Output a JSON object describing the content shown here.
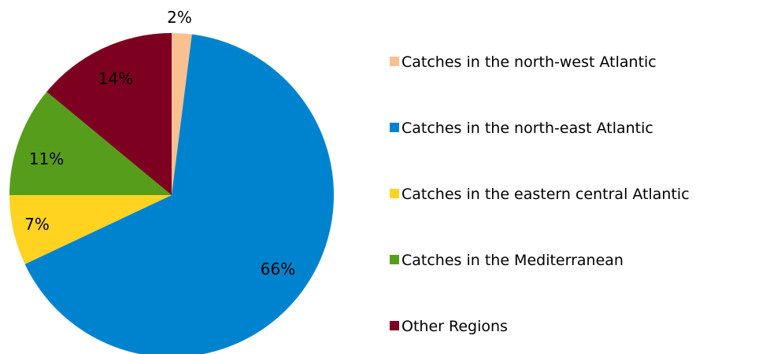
{
  "chart_data": {
    "type": "pie",
    "title": "",
    "legend_position": "right",
    "slices": [
      {
        "name": "Catches in the north-west Atlantic",
        "value": 2,
        "label": "2%",
        "color": "#FAC090"
      },
      {
        "name": "Catches in the north-east Atlantic",
        "value": 66,
        "label": "66%",
        "color": "#0083CF"
      },
      {
        "name": "Catches in the eastern central Atlantic",
        "value": 7,
        "label": "7%",
        "color": "#FFD320"
      },
      {
        "name": "Catches in the Mediterranean",
        "value": 11,
        "label": "11%",
        "color": "#579D1C"
      },
      {
        "name": "Other Regions",
        "value": 14,
        "label": "14%",
        "color": "#7E0021"
      }
    ]
  }
}
